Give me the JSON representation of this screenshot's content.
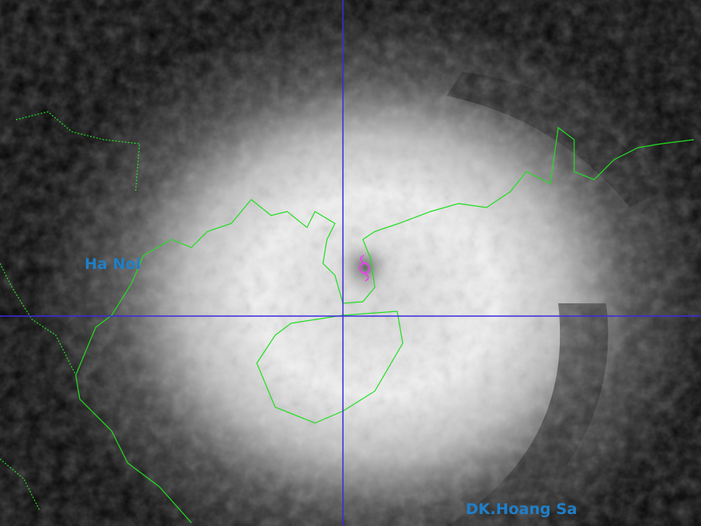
{
  "map": {
    "labels": [
      {
        "text": "Ha Noi"
      },
      {
        "text": "DK.Hoang Sa"
      }
    ],
    "colors": {
      "coastline": "#22dd22",
      "crosshair": "#3a2adf",
      "label": "#1f7fc8",
      "storm_symbol": "#ff33ff"
    },
    "storm_symbol": "typhoon-icon"
  }
}
